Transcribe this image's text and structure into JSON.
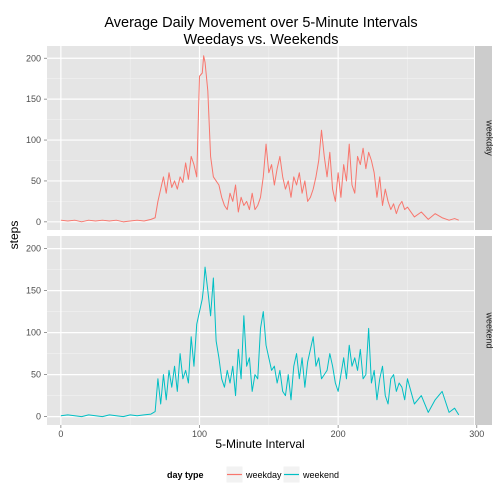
{
  "chart_data": {
    "type": "line",
    "title": [
      "Average Daily Movement over 5-Minute Intervals",
      "Weedays vs. Weekends"
    ],
    "xlabel": "5-Minute Interval",
    "ylabel": "steps",
    "xlim": [
      -10,
      298
    ],
    "xticks": [
      0,
      100,
      200,
      300
    ],
    "ylim": [
      -10,
      215
    ],
    "yticks": [
      0,
      50,
      100,
      150,
      200
    ],
    "grid": true,
    "legend": {
      "title": "day type",
      "position": "bottom",
      "entries": [
        {
          "label": "weekday",
          "color": "#f8766d"
        },
        {
          "label": "weekend",
          "color": "#00bfc4"
        }
      ]
    },
    "panels": [
      {
        "strip": "weekday",
        "color": "#f8766d",
        "x": [
          0,
          5,
          10,
          15,
          20,
          25,
          30,
          35,
          40,
          45,
          50,
          55,
          60,
          65,
          68,
          70,
          72,
          74,
          76,
          78,
          80,
          82,
          84,
          86,
          88,
          90,
          92,
          94,
          96,
          98,
          100,
          102,
          103,
          104,
          106,
          108,
          110,
          112,
          114,
          116,
          118,
          120,
          122,
          124,
          126,
          128,
          130,
          132,
          134,
          136,
          138,
          140,
          142,
          144,
          146,
          148,
          150,
          152,
          154,
          156,
          158,
          160,
          162,
          164,
          166,
          168,
          170,
          172,
          174,
          176,
          178,
          180,
          182,
          184,
          186,
          188,
          190,
          192,
          194,
          196,
          198,
          200,
          202,
          204,
          206,
          208,
          210,
          212,
          214,
          216,
          218,
          220,
          222,
          224,
          226,
          228,
          230,
          232,
          234,
          236,
          238,
          240,
          242,
          244,
          246,
          248,
          250,
          255,
          260,
          265,
          270,
          275,
          280,
          284,
          287
        ],
        "y": [
          2,
          1,
          2,
          0,
          2,
          1,
          2,
          1,
          2,
          0,
          1,
          2,
          1,
          3,
          5,
          25,
          40,
          55,
          35,
          60,
          42,
          50,
          40,
          55,
          48,
          72,
          52,
          80,
          70,
          55,
          178,
          182,
          203,
          195,
          160,
          80,
          55,
          50,
          45,
          30,
          20,
          15,
          35,
          25,
          45,
          12,
          30,
          20,
          25,
          15,
          35,
          15,
          20,
          30,
          55,
          95,
          60,
          70,
          45,
          65,
          80,
          55,
          40,
          50,
          30,
          55,
          45,
          60,
          35,
          50,
          25,
          30,
          40,
          55,
          75,
          112,
          80,
          55,
          85,
          40,
          25,
          60,
          30,
          70,
          50,
          95,
          45,
          35,
          80,
          70,
          90,
          65,
          85,
          75,
          60,
          30,
          55,
          20,
          40,
          25,
          15,
          22,
          10,
          20,
          25,
          15,
          18,
          6,
          12,
          3,
          10,
          5,
          2,
          4,
          2
        ]
      },
      {
        "strip": "weekend",
        "color": "#00bfc4",
        "x": [
          0,
          5,
          10,
          15,
          20,
          25,
          30,
          35,
          40,
          45,
          50,
          55,
          60,
          65,
          68,
          70,
          72,
          74,
          76,
          78,
          80,
          82,
          84,
          86,
          88,
          90,
          92,
          94,
          96,
          98,
          100,
          102,
          103,
          104,
          106,
          108,
          110,
          112,
          114,
          116,
          118,
          120,
          122,
          124,
          126,
          128,
          130,
          132,
          134,
          136,
          138,
          140,
          142,
          144,
          146,
          148,
          150,
          152,
          154,
          156,
          158,
          160,
          162,
          164,
          166,
          168,
          170,
          172,
          174,
          176,
          178,
          180,
          182,
          184,
          186,
          188,
          190,
          192,
          194,
          196,
          198,
          200,
          202,
          204,
          206,
          208,
          210,
          212,
          214,
          216,
          218,
          220,
          222,
          224,
          226,
          228,
          230,
          232,
          234,
          236,
          238,
          240,
          242,
          244,
          246,
          248,
          250,
          255,
          260,
          265,
          270,
          275,
          280,
          284,
          287
        ],
        "y": [
          1,
          2,
          1,
          0,
          2,
          1,
          0,
          2,
          1,
          0,
          2,
          1,
          2,
          3,
          6,
          45,
          15,
          50,
          20,
          55,
          35,
          60,
          30,
          75,
          45,
          55,
          40,
          95,
          60,
          110,
          125,
          140,
          155,
          178,
          150,
          120,
          165,
          90,
          70,
          45,
          35,
          55,
          40,
          60,
          25,
          80,
          45,
          120,
          60,
          70,
          30,
          50,
          45,
          105,
          125,
          85,
          70,
          55,
          60,
          40,
          55,
          30,
          25,
          50,
          20,
          60,
          75,
          45,
          70,
          35,
          65,
          80,
          95,
          60,
          70,
          45,
          50,
          55,
          75,
          60,
          40,
          30,
          50,
          70,
          45,
          85,
          60,
          70,
          55,
          80,
          45,
          50,
          105,
          40,
          55,
          20,
          45,
          60,
          25,
          15,
          45,
          50,
          30,
          40,
          35,
          20,
          45,
          15,
          25,
          5,
          20,
          30,
          5,
          10,
          2
        ]
      }
    ]
  }
}
